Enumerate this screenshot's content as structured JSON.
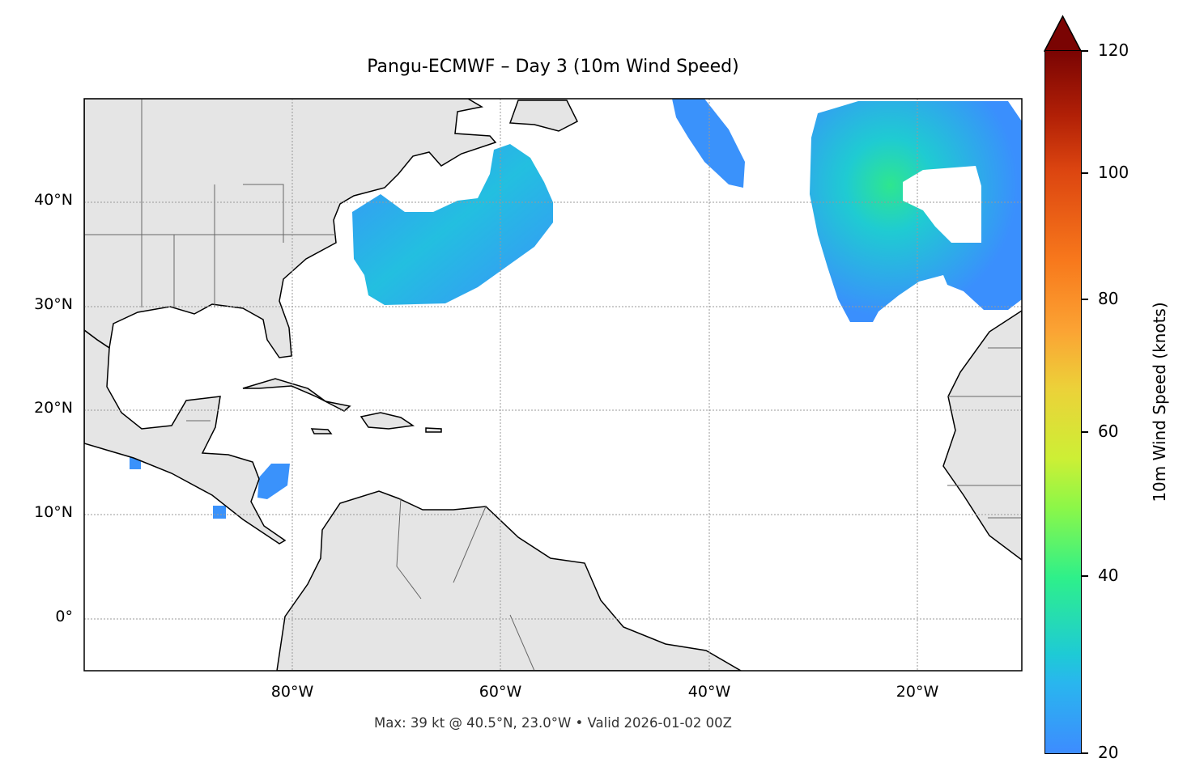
{
  "title": "Pangu-ECMWF – Day 3 (10m Wind Speed)",
  "footer": "Max: 39 kt @ 40.5°N, 23.0°W • Valid 2026-01-02 00Z",
  "map": {
    "extent": {
      "lon": [
        -100,
        -10
      ],
      "lat": [
        -5,
        50
      ]
    },
    "lat_labels": [
      "40°N",
      "30°N",
      "20°N",
      "10°N",
      "0°"
    ],
    "lon_labels": [
      "80°W",
      "60°W",
      "40°W",
      "20°W"
    ],
    "land_color": "#e5e5e5",
    "gridlines": true
  },
  "colorbar": {
    "label": "10m Wind Speed (knots)",
    "min": 20,
    "max": 120,
    "extend": "max",
    "ticks": [
      "20",
      "40",
      "60",
      "80",
      "100",
      "120"
    ],
    "colormap": "turbo"
  }
}
